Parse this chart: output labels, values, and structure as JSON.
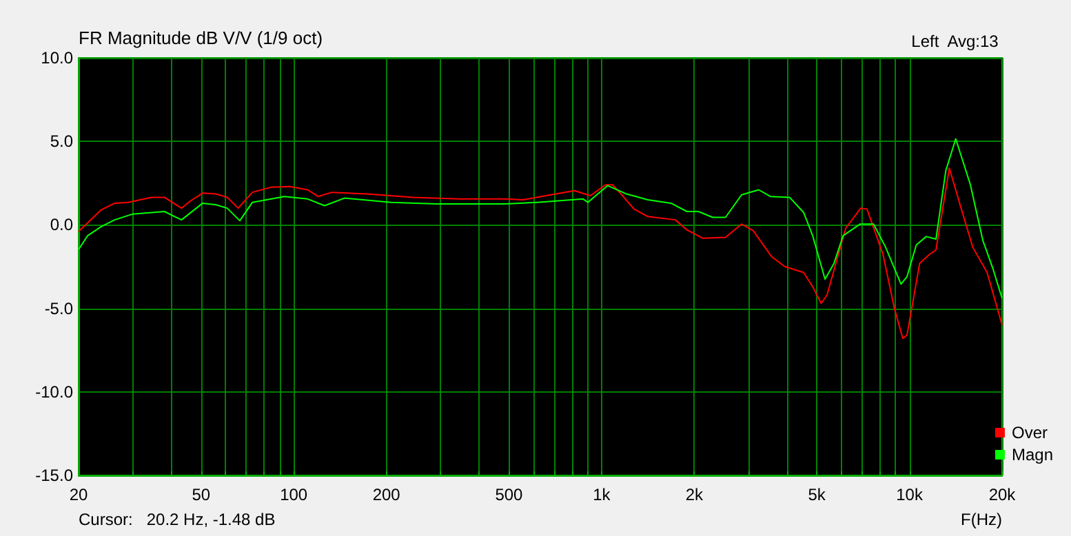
{
  "chart_data": {
    "type": "line",
    "title": "FR Magnitude dB V/V (1/9 oct)",
    "xlabel": "F(Hz)",
    "annotations": [
      "Left  Avg:13",
      "Cursor:   20.2 Hz, -1.48 dB"
    ],
    "log": "x",
    "xlim": [
      20,
      20000
    ],
    "xticks": [
      20,
      {
        "value": 30,
        "label": null
      },
      {
        "value": 40,
        "label": null
      },
      50,
      {
        "value": 60,
        "label": null
      },
      {
        "value": 70,
        "label": null
      },
      {
        "value": 80,
        "label": null
      },
      {
        "value": 90,
        "label": null
      },
      100,
      200,
      {
        "value": 300,
        "label": null
      },
      {
        "value": 400,
        "label": null
      },
      500,
      {
        "value": 600,
        "label": null
      },
      {
        "value": 700,
        "label": null
      },
      {
        "value": 800,
        "label": null
      },
      {
        "value": 900,
        "label": null
      },
      {
        "value": 1000,
        "label": "1k"
      },
      {
        "value": 2000,
        "label": "2k"
      },
      {
        "value": 3000,
        "label": null
      },
      {
        "value": 4000,
        "label": null
      },
      {
        "value": 5000,
        "label": "5k"
      },
      {
        "value": 6000,
        "label": null
      },
      {
        "value": 7000,
        "label": null
      },
      {
        "value": 8000,
        "label": null
      },
      {
        "value": 9000,
        "label": null
      },
      {
        "value": 10000,
        "label": "10k"
      },
      {
        "value": 20000,
        "label": "20k"
      }
    ],
    "ylim": [
      -15,
      10
    ],
    "yticks": [
      {
        "value": -15,
        "label": "-15.0"
      },
      {
        "value": -10,
        "label": "-10.0"
      },
      {
        "value": -5,
        "label": "-5.0"
      },
      {
        "value": 0,
        "label": "0.0"
      },
      {
        "value": 5,
        "label": "5.0"
      },
      {
        "value": 10,
        "label": "10.0"
      }
    ],
    "grid": true,
    "legend": "bottom right",
    "marker": "none",
    "line_style": "solid",
    "series": [
      {
        "name": "Over",
        "color": "#ff0000",
        "x": [
          20,
          23.7,
          26.2,
          29,
          34.5,
          38,
          43.2,
          46.3,
          50.6,
          55.9,
          60.8,
          66,
          73.4,
          84.2,
          97,
          111,
          120,
          133,
          173,
          245,
          345,
          486,
          556,
          660,
          816,
          920,
          1030,
          1085,
          1150,
          1274,
          1413,
          1737,
          1893,
          2134,
          2527,
          2850,
          3110,
          3565,
          3940,
          4530,
          4850,
          5170,
          5400,
          6210,
          6950,
          7280,
          8200,
          8950,
          9520,
          9820,
          10800,
          11570,
          12200,
          13480,
          14720,
          16070,
          17880,
          20000
        ],
        "values": [
          -0.4,
          0.9,
          1.3,
          1.35,
          1.65,
          1.65,
          1.0,
          1.45,
          1.9,
          1.85,
          1.65,
          1.0,
          1.95,
          2.25,
          2.3,
          2.1,
          1.7,
          1.95,
          1.85,
          1.65,
          1.55,
          1.55,
          1.5,
          1.75,
          2.05,
          1.75,
          2.4,
          2.4,
          1.9,
          0.95,
          0.5,
          0.3,
          -0.3,
          -0.8,
          -0.75,
          0.05,
          -0.35,
          -1.9,
          -2.5,
          -2.85,
          -3.7,
          -4.7,
          -4.2,
          -0.2,
          1.0,
          0.95,
          -1.75,
          -5.05,
          -6.8,
          -6.6,
          -2.3,
          -1.8,
          -1.5,
          3.4,
          1.0,
          -1.35,
          -2.85,
          -6.0
        ]
      },
      {
        "name": "Magn",
        "color": "#00ff00",
        "x": [
          20,
          21.4,
          23.7,
          26.2,
          30,
          38,
          43.2,
          50.6,
          55.9,
          60.8,
          66.8,
          73.4,
          93.2,
          111,
          126,
          146,
          207,
          292,
          486,
          619,
          871,
          902,
          1046,
          1206,
          1413,
          1680,
          1893,
          2063,
          2296,
          2527,
          2850,
          3240,
          3535,
          4080,
          4530,
          4850,
          5320,
          5690,
          6090,
          6920,
          7650,
          8350,
          9390,
          9820,
          10530,
          11340,
          12200,
          13130,
          14140,
          15780,
          17330,
          18660,
          20000
        ],
        "values": [
          -1.48,
          -0.65,
          -0.1,
          0.3,
          0.65,
          0.8,
          0.3,
          1.3,
          1.2,
          1.0,
          0.25,
          1.35,
          1.7,
          1.55,
          1.15,
          1.6,
          1.35,
          1.25,
          1.25,
          1.35,
          1.55,
          1.35,
          2.35,
          1.85,
          1.5,
          1.3,
          0.8,
          0.8,
          0.45,
          0.45,
          1.8,
          2.1,
          1.7,
          1.65,
          0.75,
          -0.65,
          -3.25,
          -2.3,
          -0.65,
          0.05,
          0.05,
          -1.3,
          -3.55,
          -3.1,
          -1.2,
          -0.7,
          -0.85,
          3.25,
          5.15,
          2.4,
          -0.95,
          -2.6,
          -4.4
        ]
      }
    ]
  }
}
